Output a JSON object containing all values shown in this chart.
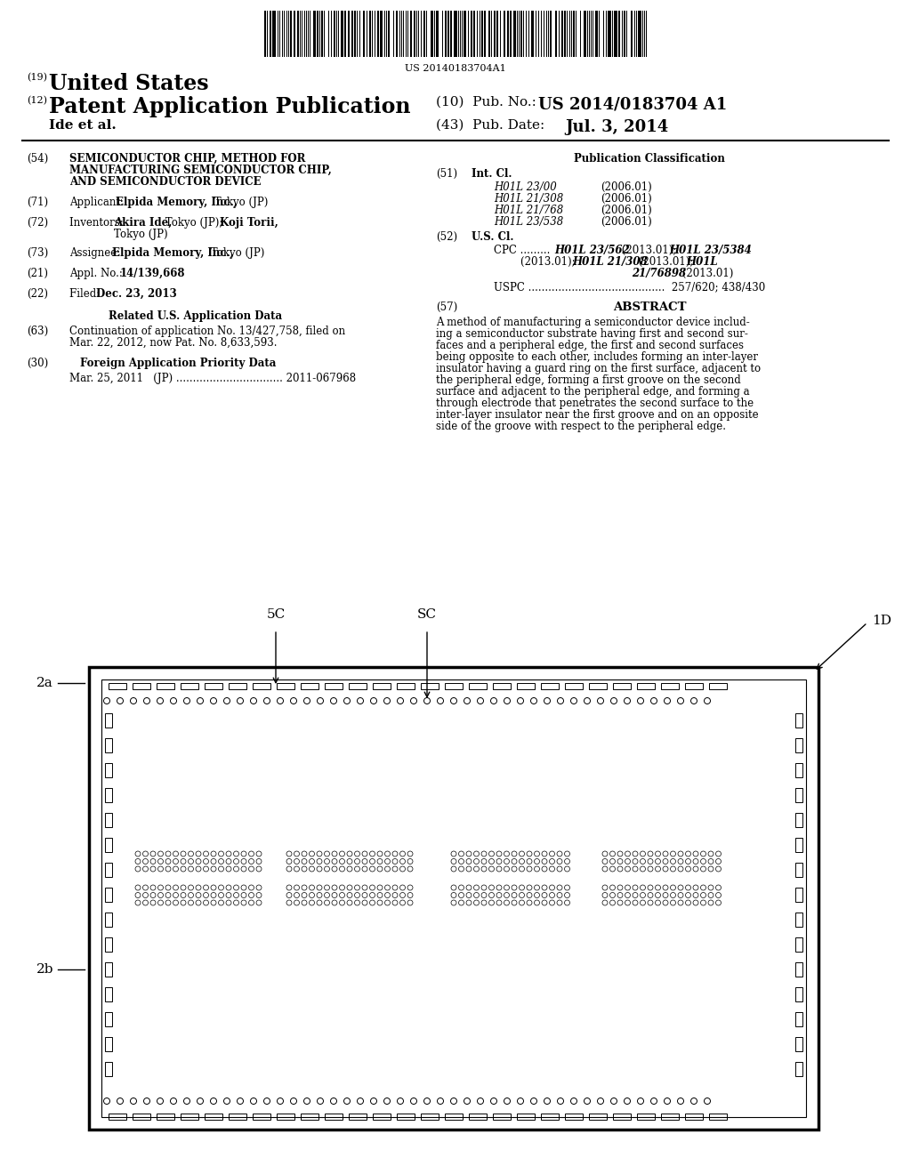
{
  "background_color": "#ffffff",
  "barcode_text": "US 20140183704A1",
  "pub_no_value": "US 2014/0183704 A1",
  "pub_date_value": "Jul. 3, 2014",
  "inventor_line": "Ide et al.",
  "field_54_text_lines": [
    "SEMICONDUCTOR CHIP, METHOD FOR",
    "MANUFACTURING SEMICONDUCTOR CHIP,",
    "AND SEMICONDUCTOR DEVICE"
  ],
  "int_cl_entries": [
    [
      "H01L 23/00",
      "(2006.01)"
    ],
    [
      "H01L 21/308",
      "(2006.01)"
    ],
    [
      "H01L 21/768",
      "(2006.01)"
    ],
    [
      "H01L 23/538",
      "(2006.01)"
    ]
  ],
  "abstract_lines": [
    "A method of manufacturing a semiconductor device includ-",
    "ing a semiconductor substrate having first and second sur-",
    "faces and a peripheral edge, the first and second surfaces",
    "being opposite to each other, includes forming an inter-layer",
    "insulator having a guard ring on the first surface, adjacent to",
    "the peripheral edge, forming a first groove on the second",
    "surface and adjacent to the peripheral edge, and forming a",
    "through electrode that penetrates the second surface to the",
    "inter-layer insulator near the first groove and on an opposite",
    "side of the groove with respect to the peripheral edge."
  ],
  "diagram_label_1D": "1D",
  "diagram_label_2a": "2a",
  "diagram_label_2b": "2b",
  "diagram_label_5C": "5C",
  "diagram_label_SC": "SC"
}
